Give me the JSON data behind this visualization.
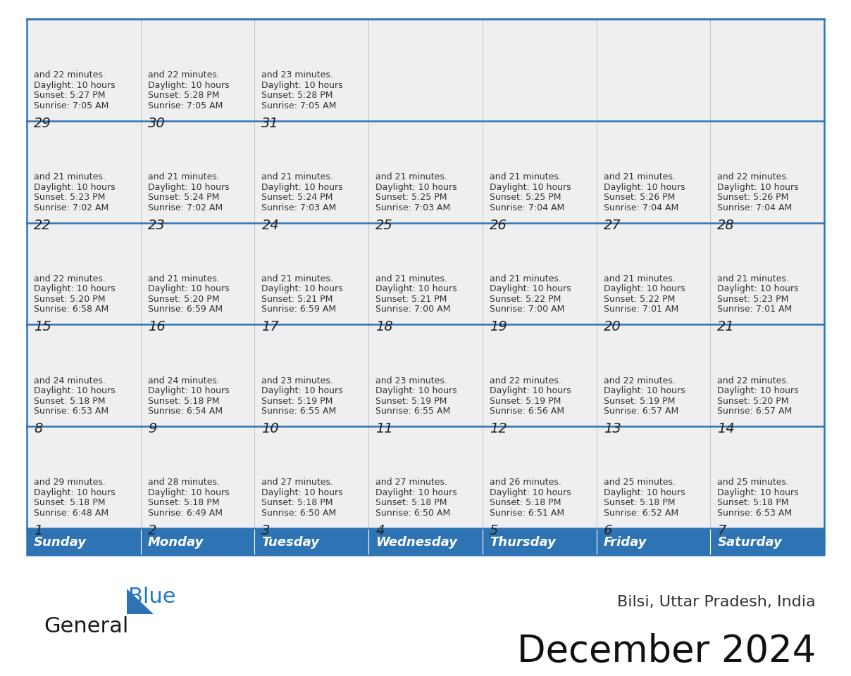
{
  "title": "December 2024",
  "subtitle": "Bilsi, Uttar Pradesh, India",
  "header_color": "#2E74B5",
  "header_text_color": "#FFFFFF",
  "cell_bg_color": "#EFEFEF",
  "day_names": [
    "Sunday",
    "Monday",
    "Tuesday",
    "Wednesday",
    "Thursday",
    "Friday",
    "Saturday"
  ],
  "weeks": [
    [
      {
        "day": 1,
        "sunrise": "6:48 AM",
        "sunset": "5:18 PM",
        "daylight": "10 hours and 29 minutes."
      },
      {
        "day": 2,
        "sunrise": "6:49 AM",
        "sunset": "5:18 PM",
        "daylight": "10 hours and 28 minutes."
      },
      {
        "day": 3,
        "sunrise": "6:50 AM",
        "sunset": "5:18 PM",
        "daylight": "10 hours and 27 minutes."
      },
      {
        "day": 4,
        "sunrise": "6:50 AM",
        "sunset": "5:18 PM",
        "daylight": "10 hours and 27 minutes."
      },
      {
        "day": 5,
        "sunrise": "6:51 AM",
        "sunset": "5:18 PM",
        "daylight": "10 hours and 26 minutes."
      },
      {
        "day": 6,
        "sunrise": "6:52 AM",
        "sunset": "5:18 PM",
        "daylight": "10 hours and 25 minutes."
      },
      {
        "day": 7,
        "sunrise": "6:53 AM",
        "sunset": "5:18 PM",
        "daylight": "10 hours and 25 minutes."
      }
    ],
    [
      {
        "day": 8,
        "sunrise": "6:53 AM",
        "sunset": "5:18 PM",
        "daylight": "10 hours and 24 minutes."
      },
      {
        "day": 9,
        "sunrise": "6:54 AM",
        "sunset": "5:18 PM",
        "daylight": "10 hours and 24 minutes."
      },
      {
        "day": 10,
        "sunrise": "6:55 AM",
        "sunset": "5:19 PM",
        "daylight": "10 hours and 23 minutes."
      },
      {
        "day": 11,
        "sunrise": "6:55 AM",
        "sunset": "5:19 PM",
        "daylight": "10 hours and 23 minutes."
      },
      {
        "day": 12,
        "sunrise": "6:56 AM",
        "sunset": "5:19 PM",
        "daylight": "10 hours and 22 minutes."
      },
      {
        "day": 13,
        "sunrise": "6:57 AM",
        "sunset": "5:19 PM",
        "daylight": "10 hours and 22 minutes."
      },
      {
        "day": 14,
        "sunrise": "6:57 AM",
        "sunset": "5:20 PM",
        "daylight": "10 hours and 22 minutes."
      }
    ],
    [
      {
        "day": 15,
        "sunrise": "6:58 AM",
        "sunset": "5:20 PM",
        "daylight": "10 hours and 22 minutes."
      },
      {
        "day": 16,
        "sunrise": "6:59 AM",
        "sunset": "5:20 PM",
        "daylight": "10 hours and 21 minutes."
      },
      {
        "day": 17,
        "sunrise": "6:59 AM",
        "sunset": "5:21 PM",
        "daylight": "10 hours and 21 minutes."
      },
      {
        "day": 18,
        "sunrise": "7:00 AM",
        "sunset": "5:21 PM",
        "daylight": "10 hours and 21 minutes."
      },
      {
        "day": 19,
        "sunrise": "7:00 AM",
        "sunset": "5:22 PM",
        "daylight": "10 hours and 21 minutes."
      },
      {
        "day": 20,
        "sunrise": "7:01 AM",
        "sunset": "5:22 PM",
        "daylight": "10 hours and 21 minutes."
      },
      {
        "day": 21,
        "sunrise": "7:01 AM",
        "sunset": "5:23 PM",
        "daylight": "10 hours and 21 minutes."
      }
    ],
    [
      {
        "day": 22,
        "sunrise": "7:02 AM",
        "sunset": "5:23 PM",
        "daylight": "10 hours and 21 minutes."
      },
      {
        "day": 23,
        "sunrise": "7:02 AM",
        "sunset": "5:24 PM",
        "daylight": "10 hours and 21 minutes."
      },
      {
        "day": 24,
        "sunrise": "7:03 AM",
        "sunset": "5:24 PM",
        "daylight": "10 hours and 21 minutes."
      },
      {
        "day": 25,
        "sunrise": "7:03 AM",
        "sunset": "5:25 PM",
        "daylight": "10 hours and 21 minutes."
      },
      {
        "day": 26,
        "sunrise": "7:04 AM",
        "sunset": "5:25 PM",
        "daylight": "10 hours and 21 minutes."
      },
      {
        "day": 27,
        "sunrise": "7:04 AM",
        "sunset": "5:26 PM",
        "daylight": "10 hours and 21 minutes."
      },
      {
        "day": 28,
        "sunrise": "7:04 AM",
        "sunset": "5:26 PM",
        "daylight": "10 hours and 22 minutes."
      }
    ],
    [
      {
        "day": 29,
        "sunrise": "7:05 AM",
        "sunset": "5:27 PM",
        "daylight": "10 hours and 22 minutes."
      },
      {
        "day": 30,
        "sunrise": "7:05 AM",
        "sunset": "5:28 PM",
        "daylight": "10 hours and 22 minutes."
      },
      {
        "day": 31,
        "sunrise": "7:05 AM",
        "sunset": "5:28 PM",
        "daylight": "10 hours and 23 minutes."
      },
      null,
      null,
      null,
      null
    ]
  ],
  "logo_color_general": "#1A1A1A",
  "logo_color_blue": "#2277CC",
  "logo_triangle_color": "#2E74B5",
  "border_color": "#2E74B5",
  "week_line_color": "#2E74B5",
  "title_fontsize": 38,
  "subtitle_fontsize": 16,
  "header_fontsize": 13,
  "day_num_fontsize": 14,
  "cell_text_fontsize": 9
}
